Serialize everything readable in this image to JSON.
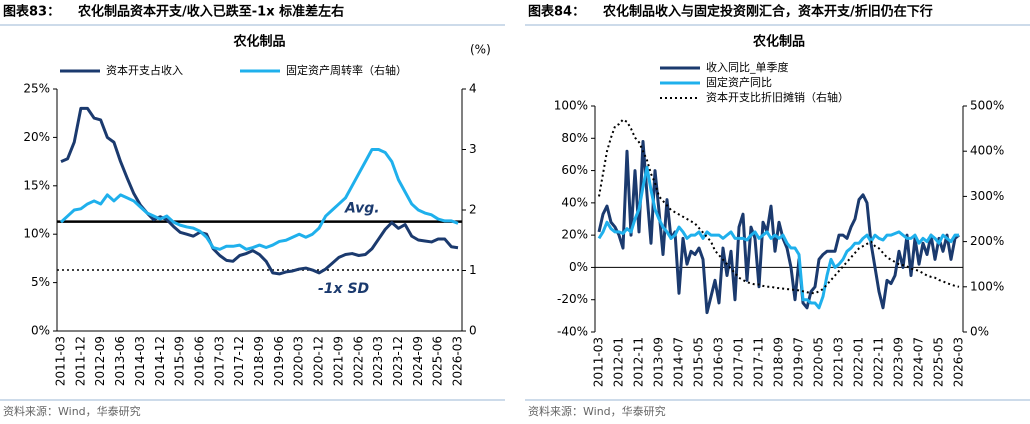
{
  "chart_data": [
    {
      "type": "line",
      "figure_label": "图表83：",
      "figure_title": "农化制品资本开支/收入已跌至-1x 标准差左右",
      "title": "农化制品",
      "y2_label": "(%)",
      "source": "资料来源：Wind，华泰研究",
      "categories": [
        "2011-03",
        null,
        null,
        "2011-12",
        null,
        null,
        "2012-09",
        null,
        null,
        "2013-06",
        null,
        null,
        "2014-03",
        null,
        null,
        "2014-12",
        null,
        null,
        "2015-09",
        null,
        null,
        "2016-06",
        null,
        null,
        "2017-03",
        null,
        null,
        "2017-12",
        null,
        null,
        "2018-09",
        null,
        null,
        "2019-06",
        null,
        null,
        "2020-03",
        null,
        null,
        "2020-12",
        null,
        null,
        "2021-09",
        null,
        null,
        "2022-06",
        null,
        null,
        "2023-03",
        null,
        null,
        "2023-12",
        null,
        null,
        "2024-09",
        null,
        null,
        "2025-06",
        null,
        null,
        "2026-03"
      ],
      "series": [
        {
          "name": "资本开支占收入",
          "color": "#1b3a6e",
          "line_style": "solid",
          "values": [
            17.5,
            17.8,
            19.5,
            23.0,
            23.0,
            22.0,
            21.8,
            20.0,
            19.5,
            17.5,
            15.8,
            14.2,
            13.0,
            12.2,
            11.5,
            11.8,
            11.5,
            10.8,
            10.2,
            10.0,
            9.8,
            10.2,
            10.0,
            8.5,
            7.8,
            7.3,
            7.2,
            7.8,
            8.0,
            8.3,
            7.9,
            7.2,
            6.0,
            5.9,
            6.1,
            6.2,
            6.4,
            6.5,
            6.3,
            6.0,
            6.4,
            7.0,
            7.6,
            7.9,
            8.0,
            7.8,
            7.9,
            8.5,
            9.5,
            10.5,
            11.2,
            10.6,
            11.0,
            9.8,
            9.4,
            9.3,
            9.2,
            9.5,
            9.5,
            8.7,
            8.6
          ]
        },
        {
          "name": "固定资产周转率（右轴）",
          "color": "#1fb0ec",
          "line_style": "solid",
          "axis": "y2",
          "values": [
            1.8,
            1.9,
            2.0,
            2.02,
            2.1,
            2.15,
            2.1,
            2.25,
            2.15,
            2.25,
            2.2,
            2.15,
            2.05,
            1.95,
            1.9,
            1.85,
            1.9,
            1.8,
            1.75,
            1.72,
            1.7,
            1.65,
            1.55,
            1.38,
            1.35,
            1.4,
            1.4,
            1.42,
            1.35,
            1.38,
            1.42,
            1.38,
            1.42,
            1.48,
            1.5,
            1.55,
            1.6,
            1.55,
            1.6,
            1.7,
            1.9,
            2.0,
            2.1,
            2.2,
            2.4,
            2.6,
            2.8,
            3.0,
            3.0,
            2.95,
            2.8,
            2.5,
            2.3,
            2.1,
            2.0,
            1.95,
            1.92,
            1.85,
            1.82,
            1.82,
            1.78
          ]
        }
      ],
      "reference_lines": [
        {
          "value": 11.3,
          "label": "Avg.",
          "line_style": "solid",
          "color": "#000000"
        },
        {
          "value": 6.3,
          "label": "-1x SD",
          "line_style": "dotted",
          "color": "#000000"
        }
      ],
      "ylim": [
        0,
        25
      ],
      "yticks": [
        {
          "value": 0,
          "label": "0%"
        },
        {
          "value": 5,
          "label": "5%"
        },
        {
          "value": 10,
          "label": "10%"
        },
        {
          "value": 15,
          "label": "15%"
        },
        {
          "value": 20,
          "label": "20%"
        },
        {
          "value": 25,
          "label": "25%"
        }
      ],
      "y2lim": [
        0,
        4
      ],
      "y2ticks": [
        0,
        1,
        2,
        3,
        4
      ],
      "legend": "top-horizontal"
    },
    {
      "type": "line",
      "figure_label": "图表84：",
      "figure_title": "农化制品收入与固定投资刚汇合，资本开支/折旧仍在下行",
      "title": "农化制品",
      "source": "资料来源：Wind，华泰研究",
      "categories": [
        "2011-03",
        null,
        null,
        null,
        null,
        "2012-01",
        null,
        null,
        null,
        null,
        "2012-11",
        null,
        null,
        null,
        null,
        "2013-09",
        null,
        null,
        null,
        null,
        "2014-07",
        null,
        null,
        null,
        null,
        "2015-05",
        null,
        null,
        null,
        null,
        "2016-03",
        null,
        null,
        null,
        null,
        "2017-01",
        null,
        null,
        null,
        null,
        "2017-11",
        null,
        null,
        null,
        null,
        "2018-09",
        null,
        null,
        null,
        null,
        "2019-07",
        null,
        null,
        null,
        null,
        "2020-05",
        null,
        null,
        null,
        null,
        "2021-03",
        null,
        null,
        null,
        null,
        "2022-01",
        null,
        null,
        null,
        null,
        "2022-11",
        null,
        null,
        null,
        null,
        "2023-09",
        null,
        null,
        null,
        null,
        "2024-07",
        null,
        null,
        null,
        null,
        "2025-05",
        null,
        null,
        null,
        null,
        "2026-03"
      ],
      "series": [
        {
          "name": "收入同比_单季度",
          "color": "#1b3a6e",
          "line_style": "solid",
          "values": [
            22,
            33,
            38,
            28,
            25,
            20,
            12,
            72,
            20,
            60,
            22,
            78,
            45,
            15,
            60,
            35,
            8,
            42,
            18,
            22,
            -16,
            18,
            2,
            10,
            8,
            12,
            5,
            -28,
            -18,
            -8,
            -22,
            12,
            -5,
            10,
            -20,
            25,
            33,
            -8,
            25,
            18,
            -12,
            28,
            22,
            38,
            10,
            28,
            18,
            12,
            0,
            -20,
            5,
            -22,
            -25,
            -15,
            -12,
            5,
            8,
            10,
            10,
            10,
            20,
            20,
            18,
            25,
            30,
            42,
            45,
            40,
            15,
            0,
            -15,
            -25,
            -8,
            -10,
            -5,
            10,
            0,
            20,
            -5,
            18,
            2,
            15,
            8,
            20,
            5,
            18,
            10,
            20,
            5,
            18,
            20
          ]
        },
        {
          "name": "固定资产同比",
          "color": "#1fb0ec",
          "line_style": "solid",
          "values": [
            18,
            22,
            28,
            24,
            22,
            22,
            21,
            24,
            22,
            30,
            36,
            50,
            62,
            48,
            36,
            30,
            25,
            22,
            18,
            20,
            25,
            22,
            18,
            20,
            20,
            22,
            18,
            22,
            20,
            20,
            20,
            18,
            20,
            22,
            18,
            18,
            18,
            17,
            20,
            22,
            18,
            20,
            22,
            18,
            20,
            18,
            20,
            15,
            12,
            12,
            8,
            -20,
            -20,
            -22,
            -22,
            -25,
            -18,
            -5,
            5,
            0,
            2,
            5,
            10,
            12,
            15,
            15,
            18,
            20,
            16,
            20,
            18,
            17,
            20,
            20,
            21,
            22,
            20,
            18,
            18,
            20,
            15,
            18,
            16,
            20,
            18,
            15,
            20,
            18,
            16,
            20,
            20
          ]
        },
        {
          "name": "资本开支比折旧摊销（右轴）",
          "color": "#000000",
          "line_style": "dotted",
          "axis": "y2",
          "values": [
            300,
            350,
            400,
            430,
            455,
            460,
            470,
            465,
            450,
            430,
            420,
            400,
            380,
            350,
            330,
            300,
            290,
            280,
            270,
            265,
            260,
            255,
            250,
            245,
            240,
            230,
            220,
            210,
            200,
            180,
            170,
            160,
            150,
            140,
            130,
            120,
            115,
            110,
            108,
            105,
            105,
            102,
            100,
            100,
            98,
            97,
            96,
            95,
            94,
            93,
            92,
            90,
            88,
            86,
            86,
            90,
            95,
            105,
            115,
            125,
            135,
            145,
            155,
            165,
            175,
            185,
            190,
            195,
            200,
            190,
            185,
            175,
            165,
            160,
            155,
            150,
            148,
            145,
            140,
            138,
            135,
            130,
            125,
            122,
            120,
            115,
            112,
            108,
            105,
            102,
            100
          ]
        }
      ],
      "ylim": [
        -40,
        100
      ],
      "yticks": [
        {
          "value": -40,
          "label": "-40%"
        },
        {
          "value": -20,
          "label": "-20%"
        },
        {
          "value": 0,
          "label": "0%"
        },
        {
          "value": 20,
          "label": "20%"
        },
        {
          "value": 40,
          "label": "40%"
        },
        {
          "value": 60,
          "label": "60%"
        },
        {
          "value": 80,
          "label": "80%"
        },
        {
          "value": 100,
          "label": "100%"
        }
      ],
      "y2lim": [
        0,
        500
      ],
      "y2ticks": [
        {
          "value": 0,
          "label": "0%"
        },
        {
          "value": 100,
          "label": "100%"
        },
        {
          "value": 200,
          "label": "200%"
        },
        {
          "value": 300,
          "label": "300%"
        },
        {
          "value": 400,
          "label": "400%"
        },
        {
          "value": 500,
          "label": "500%"
        }
      ],
      "legend": "top-left-vertical"
    }
  ]
}
